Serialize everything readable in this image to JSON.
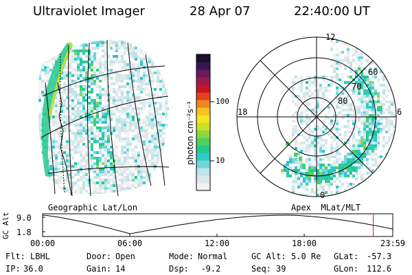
{
  "header": {
    "instrument": "Ultraviolet Imager",
    "date": "28 Apr 07",
    "time": "22:40:00 UT"
  },
  "colorbar": {
    "label": "photon cm⁻²s⁻¹",
    "ticks": [
      "100",
      "10"
    ],
    "colors": [
      "#f2f2f2",
      "#dce8ea",
      "#bfe4e7",
      "#6fd6da",
      "#2ec9c9",
      "#23c98e",
      "#4fcf5b",
      "#8fd83b",
      "#c8e326",
      "#f2e622",
      "#f7bf1f",
      "#f2841b",
      "#e8401b",
      "#c8142a",
      "#9e1a4b",
      "#6c1a5e",
      "#3a1650",
      "#1a0f2e"
    ]
  },
  "left_panel": {
    "label": "Geographic Lat/Lon"
  },
  "right_panel": {
    "label": "Apex  MLat/MLT",
    "lat_rings": [
      "80",
      "70",
      "60"
    ],
    "mlt_labels": {
      "top": "12",
      "left": "18",
      "right": "6",
      "bottom": "0"
    }
  },
  "altitude_plot": {
    "ylabel": "GC Alt",
    "yticks": [
      "9.0",
      "1.8"
    ],
    "xticks": [
      "00:00",
      "06:00",
      "12:00",
      "18:00",
      "23:59"
    ],
    "current_time_fraction": 0.9444
  },
  "status": {
    "row1": [
      {
        "key": "Flt:",
        "value": "LBHL"
      },
      {
        "key": "Door:",
        "value": "Open"
      },
      {
        "key": "Mode:",
        "value": "Normal"
      },
      {
        "key": "GC Alt:",
        "value": "5.0 Re"
      },
      {
        "key": "GLat:",
        "value": "-57.3"
      }
    ],
    "row2": [
      {
        "key": "IP:",
        "value": "36.0"
      },
      {
        "key": "Gain:",
        "value": "14"
      },
      {
        "key": "Dsp:",
        "value": "  -9.2"
      },
      {
        "key": "Seq:",
        "value": "39"
      },
      {
        "key": "GLon:",
        "value": "112.6"
      }
    ]
  }
}
